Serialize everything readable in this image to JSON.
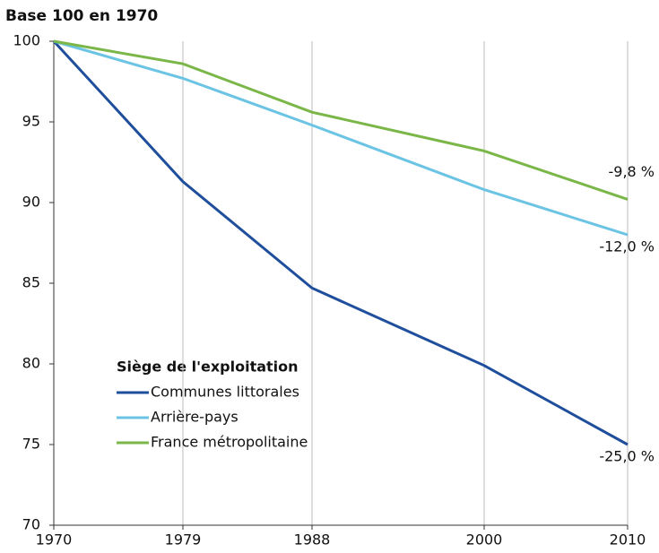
{
  "chart_data": {
    "type": "line",
    "title": "Base 100 en 1970",
    "x": [
      1970,
      1979,
      1988,
      2000,
      2010
    ],
    "series": [
      {
        "name": "Communes littorales",
        "color": "#1f4e9c",
        "values": [
          100,
          91.3,
          84.7,
          79.9,
          75.0
        ]
      },
      {
        "name": "Arrière-pays",
        "color": "#6cc4e4",
        "values": [
          100,
          97.7,
          94.8,
          90.8,
          88.0
        ]
      },
      {
        "name": "France métropolitaine",
        "color": "#7ab648",
        "values": [
          100,
          98.6,
          95.6,
          93.2,
          90.2
        ]
      }
    ],
    "legend_title": "Siège de l'exploitation",
    "annotations": [
      "-9,8 %",
      "-12,0 %",
      "-25,0 %"
    ],
    "xlim": [
      1970,
      2010
    ],
    "xticks": [
      1970,
      1979,
      1988,
      2000,
      2010
    ],
    "ylim": [
      70,
      100
    ],
    "yticks": [
      70,
      75,
      80,
      85,
      90,
      95,
      100
    ],
    "grid": "x"
  }
}
